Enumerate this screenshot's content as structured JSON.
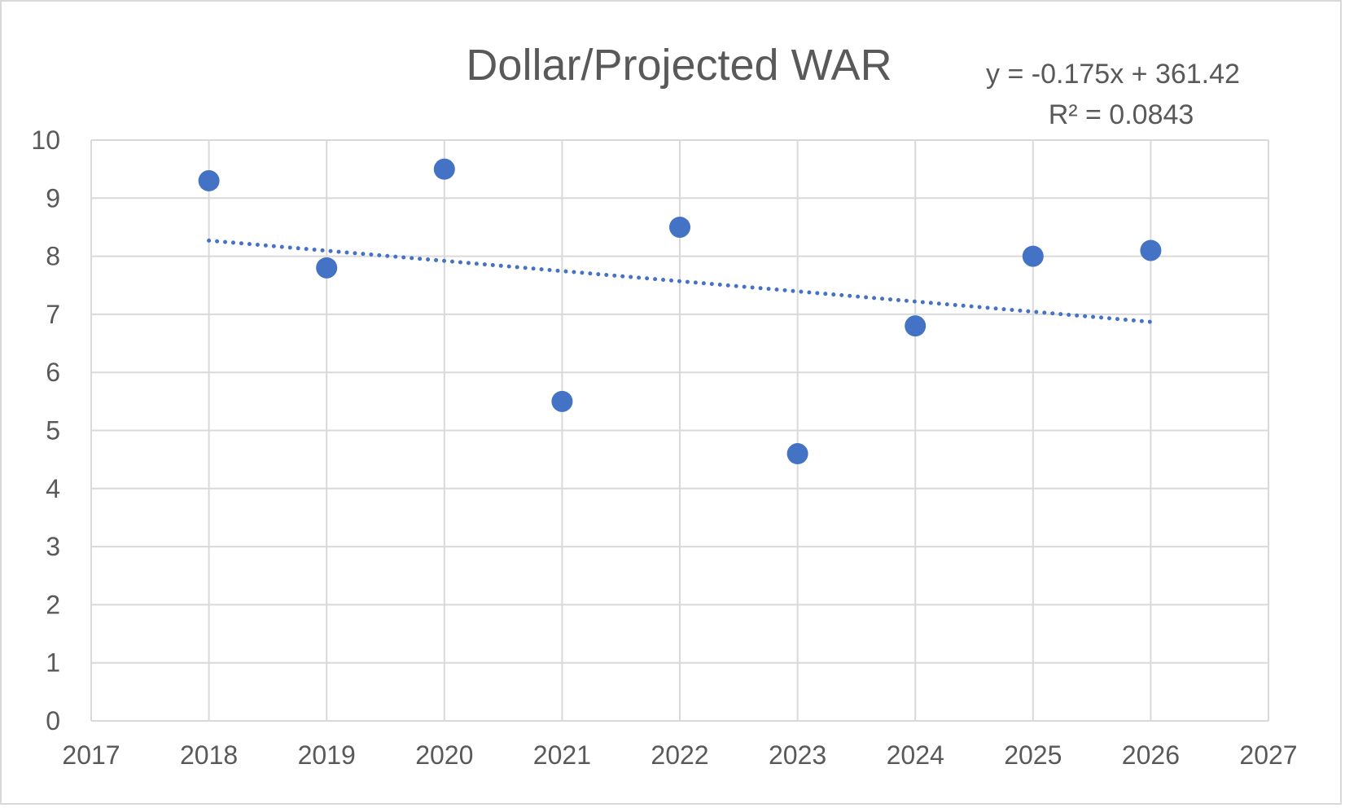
{
  "chart_data": {
    "type": "scatter",
    "title": "Dollar/Projected WAR",
    "xlabel": "",
    "ylabel": "",
    "xlim": [
      2017,
      2027
    ],
    "ylim": [
      0,
      10
    ],
    "x_ticks": [
      2017,
      2018,
      2019,
      2020,
      2021,
      2022,
      2023,
      2024,
      2025,
      2026,
      2027
    ],
    "y_ticks": [
      0,
      1,
      2,
      3,
      4,
      5,
      6,
      7,
      8,
      9,
      10
    ],
    "grid": true,
    "legend": "none",
    "series": [
      {
        "color": "#4472c4",
        "x": [
          2018,
          2019,
          2020,
          2021,
          2022,
          2023,
          2024,
          2025,
          2026
        ],
        "y": [
          9.3,
          7.8,
          9.5,
          5.5,
          8.5,
          4.6,
          6.8,
          8.0,
          8.1
        ]
      }
    ],
    "trendline": {
      "type": "linear",
      "style": "dotted",
      "color": "#4472c4",
      "slope": -0.175,
      "intercept": 361.42,
      "x_range": [
        2018,
        2026
      ],
      "equation_label": "y = -0.175x + 361.42",
      "r2_label": "R² = 0.0843"
    }
  }
}
